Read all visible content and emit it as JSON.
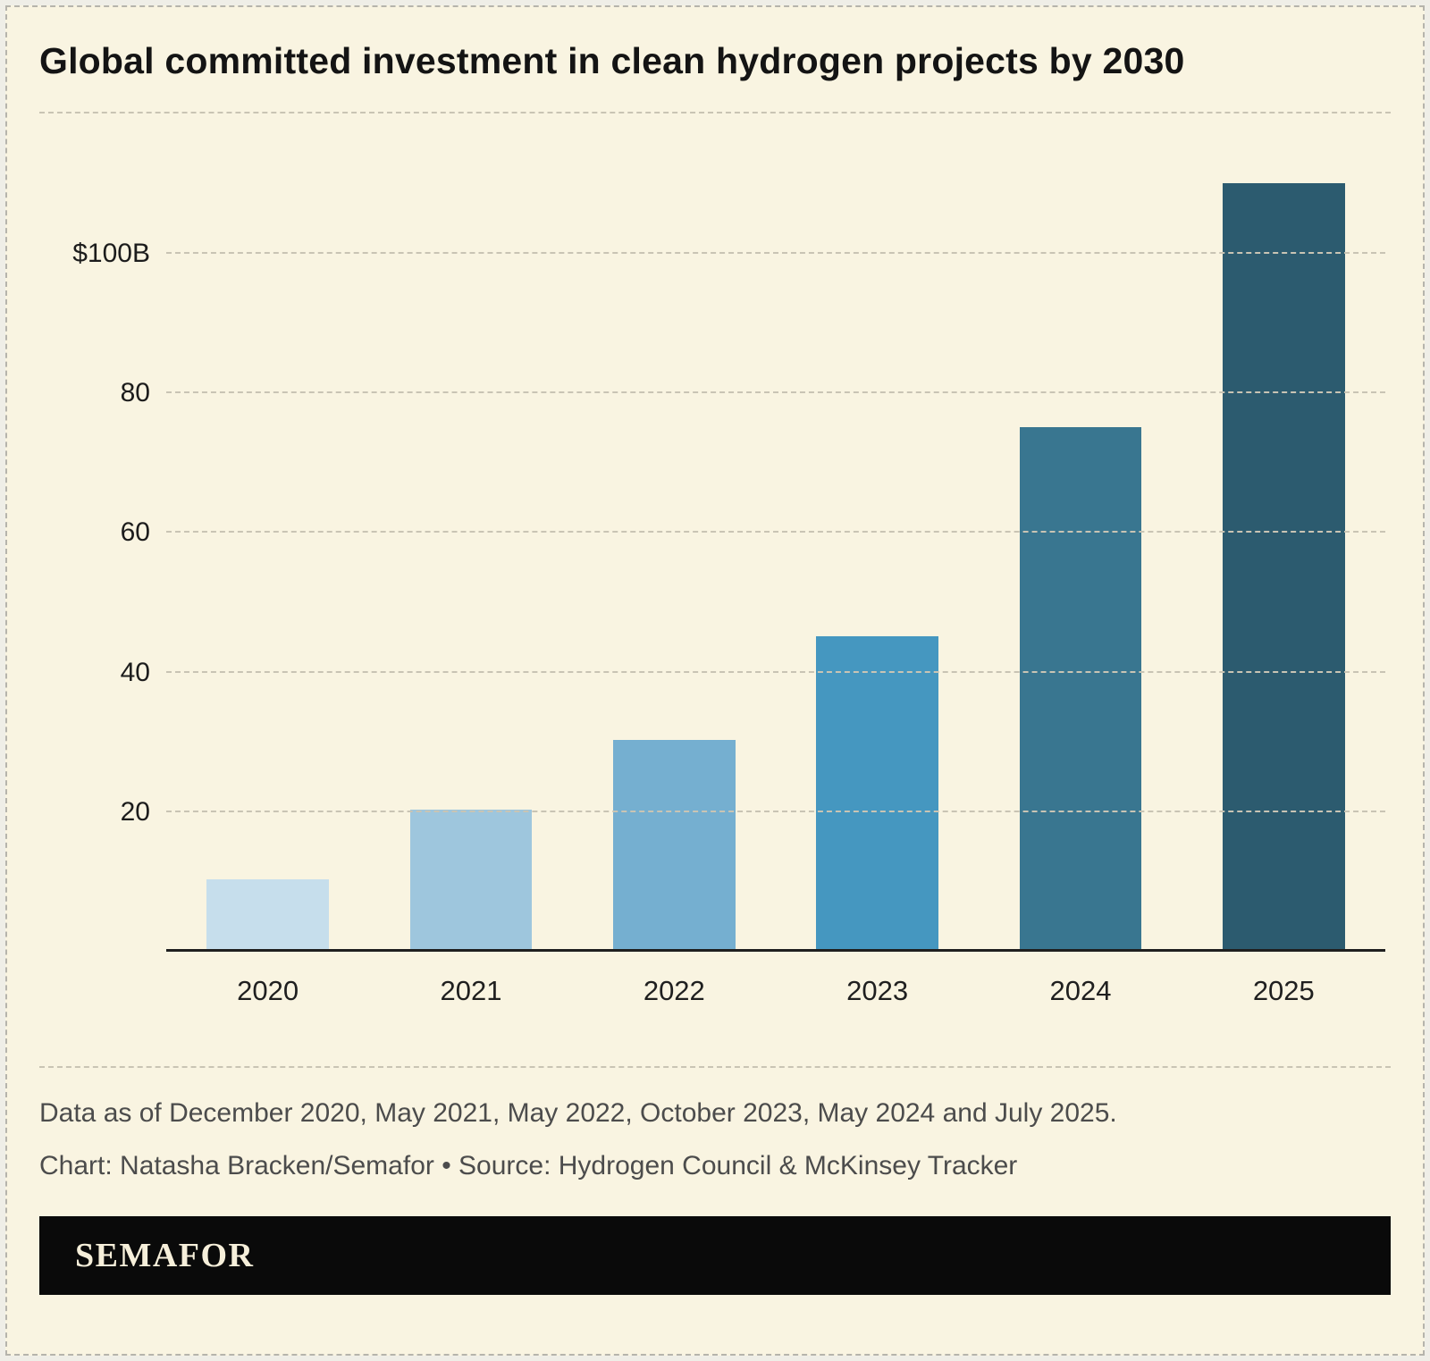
{
  "title": "Global committed investment in clean hydrogen projects by 2030",
  "chart_data": {
    "type": "bar",
    "title": "Global committed investment in clean hydrogen projects by 2030",
    "categories": [
      "2020",
      "2021",
      "2022",
      "2023",
      "2024",
      "2025"
    ],
    "values": [
      10,
      20,
      30,
      45,
      75,
      110
    ],
    "unit": "billion USD",
    "bar_colors": [
      "#c6deec",
      "#9ec6dd",
      "#75afd0",
      "#4597c0",
      "#397690",
      "#2c5b6f"
    ],
    "xlabel": "",
    "ylabel": "",
    "ylim": [
      0,
      120
    ],
    "yticks": [
      {
        "value": 20,
        "label": "20"
      },
      {
        "value": 40,
        "label": "40"
      },
      {
        "value": 60,
        "label": "60"
      },
      {
        "value": 80,
        "label": "80"
      },
      {
        "value": 100,
        "label": "$100B"
      }
    ],
    "grid": "horizontal dashed",
    "legend": "none"
  },
  "notes": {
    "data_asof": "Data as of December 2020, May 2021, May 2022, October 2023, May 2024 and July 2025.",
    "credit": "Chart: Natasha Bracken/Semafor • Source: Hydrogen Council & McKinsey Tracker"
  },
  "footer": {
    "brand": "SEMAFOR"
  }
}
